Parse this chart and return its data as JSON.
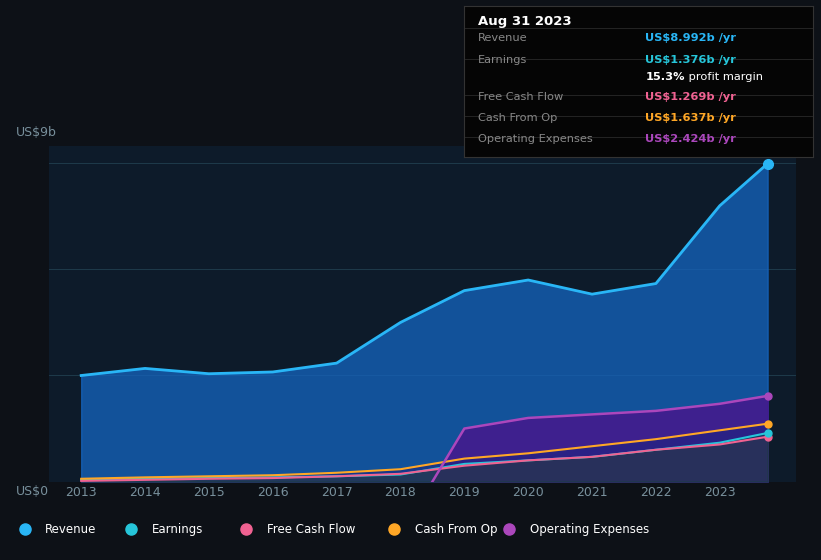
{
  "background_color": "#0d1117",
  "plot_bg_color": "#0d1b2a",
  "ylabel_top": "US$9b",
  "ylabel_bottom": "US$0",
  "x_years": [
    2013,
    2014,
    2015,
    2016,
    2017,
    2018,
    2019,
    2020,
    2021,
    2022,
    2023,
    2023.75
  ],
  "revenue": [
    3.0,
    3.2,
    3.05,
    3.1,
    3.35,
    4.5,
    5.4,
    5.7,
    5.3,
    5.6,
    7.8,
    8.992
  ],
  "earnings": [
    0.05,
    0.08,
    0.1,
    0.12,
    0.15,
    0.2,
    0.5,
    0.6,
    0.7,
    0.9,
    1.1,
    1.376
  ],
  "free_cash_flow": [
    0.02,
    0.05,
    0.08,
    0.1,
    0.15,
    0.22,
    0.45,
    0.6,
    0.7,
    0.9,
    1.05,
    1.269
  ],
  "cash_from_op": [
    0.08,
    0.12,
    0.15,
    0.18,
    0.25,
    0.35,
    0.65,
    0.8,
    1.0,
    1.2,
    1.45,
    1.637
  ],
  "op_expenses_x": [
    2018.5,
    2019,
    2020,
    2021,
    2022,
    2023,
    2023.75
  ],
  "op_expenses": [
    0.0,
    1.5,
    1.8,
    1.9,
    2.0,
    2.2,
    2.424
  ],
  "revenue_color": "#29b6f6",
  "earnings_color": "#26c6da",
  "free_cash_flow_color": "#f06292",
  "cash_from_op_color": "#ffa726",
  "op_expenses_color": "#ab47bc",
  "revenue_fill_color": "#1565c0",
  "op_expenses_fill_color": "#4a148c",
  "grid_color": "#1e3a4a",
  "text_color_dim": "#78909c",
  "ylim": [
    0,
    9.5
  ],
  "info_box": {
    "title": "Aug 31 2023",
    "rows": [
      {
        "label": "Revenue",
        "value": "US$8.992b /yr",
        "value_color": "#29b6f6"
      },
      {
        "label": "Earnings",
        "value": "US$1.376b /yr",
        "value_color": "#26c6da"
      },
      {
        "label": "",
        "value": "15.3% profit margin",
        "value_color": "#ffffff"
      },
      {
        "label": "Free Cash Flow",
        "value": "US$1.269b /yr",
        "value_color": "#f06292"
      },
      {
        "label": "Cash From Op",
        "value": "US$1.637b /yr",
        "value_color": "#ffa726"
      },
      {
        "label": "Operating Expenses",
        "value": "US$2.424b /yr",
        "value_color": "#ab47bc"
      }
    ]
  },
  "legend_items": [
    {
      "label": "Revenue",
      "color": "#29b6f6"
    },
    {
      "label": "Earnings",
      "color": "#26c6da"
    },
    {
      "label": "Free Cash Flow",
      "color": "#f06292"
    },
    {
      "label": "Cash From Op",
      "color": "#ffa726"
    },
    {
      "label": "Operating Expenses",
      "color": "#ab47bc"
    }
  ]
}
